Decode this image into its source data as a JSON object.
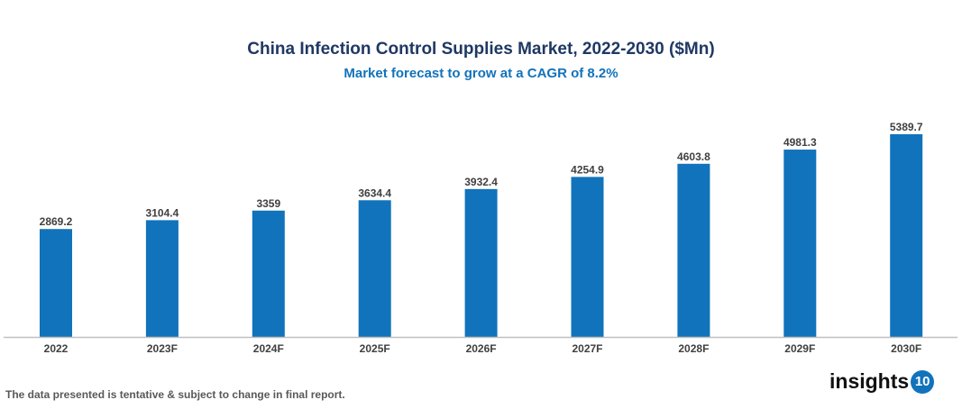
{
  "chart_data": {
    "type": "bar",
    "title": "China Infection Control Supplies Market, 2022-2030 ($Mn)",
    "subtitle": "Market forecast to grow at a CAGR of 8.2%",
    "categories": [
      "2022",
      "2023F",
      "2024F",
      "2025F",
      "2026F",
      "2027F",
      "2028F",
      "2029F",
      "2030F"
    ],
    "values": [
      2869.2,
      3104.4,
      3359,
      3634.4,
      3932.4,
      4254.9,
      4603.8,
      4981.3,
      5389.7
    ],
    "data_labels": [
      "2869.2",
      "3104.4",
      "3359",
      "3634.4",
      "3932.4",
      "4254.9",
      "4603.8",
      "4981.3",
      "5389.7"
    ],
    "ylim": [
      0,
      5400
    ],
    "grid": false,
    "legend": "none",
    "bar_color": "#1173bb"
  },
  "footnote": "The data presented is tentative & subject to change in final report.",
  "logo": {
    "text": "insights",
    "badge": "10"
  }
}
